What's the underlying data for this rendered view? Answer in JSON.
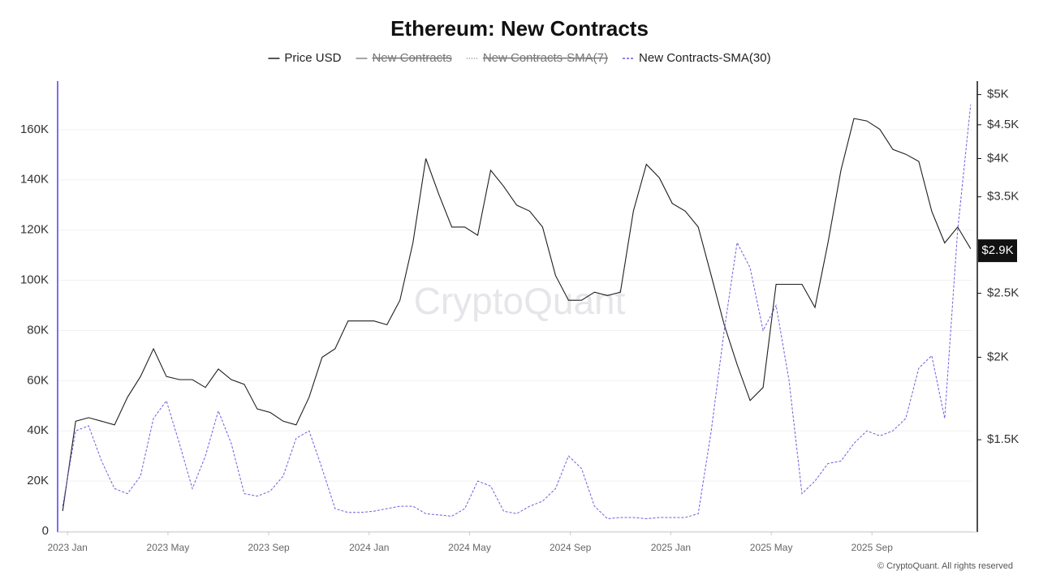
{
  "chart_data": {
    "type": "line",
    "title": "Ethereum: New Contracts",
    "watermark": "CryptoQuant",
    "footer": "© CryptoQuant. All rights reserved",
    "x": [
      2022.984,
      2023.027,
      2023.07,
      2023.113,
      2023.156,
      2023.199,
      2023.242,
      2023.285,
      2023.328,
      2023.371,
      2023.414,
      2023.457,
      2023.5,
      2023.543,
      2023.586,
      2023.629,
      2023.672,
      2023.715,
      2023.758,
      2023.801,
      2023.844,
      2023.887,
      2023.93,
      2023.973,
      2024.016,
      2024.059,
      2024.102,
      2024.145,
      2024.188,
      2024.231,
      2024.274,
      2024.317,
      2024.36,
      2024.403,
      2024.446,
      2024.489,
      2024.532,
      2024.575,
      2024.618,
      2024.661,
      2024.704,
      2024.747,
      2024.79,
      2024.833,
      2024.876,
      2024.919,
      2024.962,
      2025.005,
      2025.048,
      2025.091,
      2025.134,
      2025.177,
      2025.22,
      2025.263,
      2025.306,
      2025.349,
      2025.392,
      2025.435,
      2025.478,
      2025.521,
      2025.564,
      2025.607,
      2025.65,
      2025.693,
      2025.736,
      2025.779,
      2025.822,
      2025.865,
      2025.908,
      2025.951,
      2025.994
    ],
    "series": [
      {
        "name": "Price USD",
        "color": "#1f1f1f",
        "axis": "y2",
        "dash": "none",
        "values": [
          1170,
          1600,
          1620,
          1600,
          1580,
          1740,
          1870,
          2060,
          1870,
          1850,
          1850,
          1800,
          1920,
          1850,
          1820,
          1670,
          1650,
          1600,
          1580,
          1740,
          2000,
          2060,
          2270,
          2270,
          2270,
          2240,
          2440,
          2980,
          4000,
          3530,
          3150,
          3150,
          3060,
          3840,
          3630,
          3400,
          3330,
          3150,
          2660,
          2440,
          2440,
          2510,
          2480,
          2510,
          3330,
          3920,
          3740,
          3420,
          3330,
          3150,
          2660,
          2240,
          1950,
          1720,
          1800,
          2580,
          2580,
          2580,
          2380,
          2980,
          3840,
          4600,
          4560,
          4430,
          4130,
          4060,
          3960,
          3330,
          2980,
          3150,
          2920
        ]
      },
      {
        "name": "New Contracts",
        "color": "#444444",
        "hidden": true,
        "dash": "none"
      },
      {
        "name": "New Contracts-SMA(7)",
        "color": "#666666",
        "hidden": true,
        "dash": "1 2"
      },
      {
        "name": "New Contracts-SMA(30)",
        "color": "#6a5fe0",
        "dash": "3 2",
        "values": [
          10000,
          40000,
          42000,
          28000,
          17000,
          15000,
          22000,
          45000,
          52000,
          35000,
          17000,
          30000,
          48000,
          35000,
          15000,
          14000,
          16000,
          22000,
          37000,
          40000,
          25000,
          9000,
          7500,
          7500,
          8000,
          9000,
          10000,
          10000,
          7000,
          6500,
          6000,
          9000,
          20000,
          18000,
          8000,
          7000,
          10000,
          12000,
          17000,
          30000,
          25000,
          10000,
          5000,
          5500,
          5500,
          5000,
          5500,
          5500,
          5500,
          7000,
          40000,
          80000,
          115000,
          105000,
          80000,
          90000,
          60000,
          15000,
          20000,
          27000,
          28000,
          35000,
          40000,
          38000,
          40000,
          45000,
          65000,
          70000,
          45000,
          120000,
          170000
        ]
      }
    ],
    "xlim": [
      2022.97,
      2026.0
    ],
    "xticks": [
      {
        "value": 2023.0,
        "label": "2023 Jan"
      },
      {
        "value": 2023.333,
        "label": "2023 May"
      },
      {
        "value": 2023.667,
        "label": "2023 Sep"
      },
      {
        "value": 2024.0,
        "label": "2024 Jan"
      },
      {
        "value": 2024.333,
        "label": "2024 May"
      },
      {
        "value": 2024.667,
        "label": "2024 Sep"
      },
      {
        "value": 2025.0,
        "label": "2025 Jan"
      },
      {
        "value": 2025.333,
        "label": "2025 May"
      },
      {
        "value": 2025.667,
        "label": "2025 Sep"
      }
    ],
    "ylim": [
      0,
      180000
    ],
    "yticks": [
      0,
      {
        "value": 20000,
        "label": "20K"
      },
      {
        "value": 40000,
        "label": "40K"
      },
      {
        "value": 60000,
        "label": "60K"
      },
      {
        "value": 80000,
        "label": "80K"
      },
      {
        "value": 100000,
        "label": "100K"
      },
      {
        "value": 120000,
        "label": "120K"
      },
      {
        "value": 140000,
        "label": "140K"
      },
      {
        "value": 160000,
        "label": "160K"
      }
    ],
    "y2lim": [
      1090,
      5270
    ],
    "y2log": true,
    "y2ticks": [
      {
        "value": 1500,
        "label": "$1.5K"
      },
      {
        "value": 2000,
        "label": "$2K"
      },
      {
        "value": 2500,
        "label": "$2.5K"
      },
      {
        "value": 3500,
        "label": "$3.5K"
      },
      {
        "value": 4000,
        "label": "$4K"
      },
      {
        "value": 4500,
        "label": "$4.5K"
      },
      {
        "value": 5000,
        "label": "$5K"
      }
    ],
    "last_price": {
      "value": 2900,
      "label": "$2.9K"
    },
    "grid": true
  }
}
